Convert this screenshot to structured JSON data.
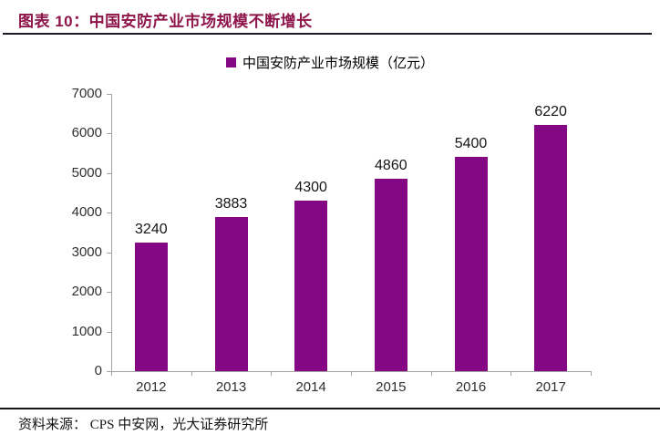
{
  "header": {
    "title": "图表 10：中国安防产业市场规模不断增长",
    "title_color": "#8D154A"
  },
  "legend": {
    "swatch_color": "#840884",
    "label": "中国安防产业市场规模（亿元）"
  },
  "chart_data": {
    "type": "bar",
    "title": "中国安防产业市场规模不断增长",
    "series_name": "中国安防产业市场规模（亿元）",
    "categories": [
      "2012",
      "2013",
      "2014",
      "2015",
      "2016",
      "2017"
    ],
    "values": [
      3240,
      3883,
      4300,
      4860,
      5400,
      6220
    ],
    "xlabel": "",
    "ylabel": "",
    "ylim": [
      0,
      7000
    ],
    "ytick_step": 1000,
    "yticks": [
      0,
      1000,
      2000,
      3000,
      4000,
      5000,
      6000,
      7000
    ],
    "bar_color": "#840884",
    "axis_color": "#a3a3a3",
    "grid": false,
    "legend_position": "top",
    "value_labels": true
  },
  "footer": {
    "source": "资料来源： CPS 中安网，光大证券研究所"
  }
}
